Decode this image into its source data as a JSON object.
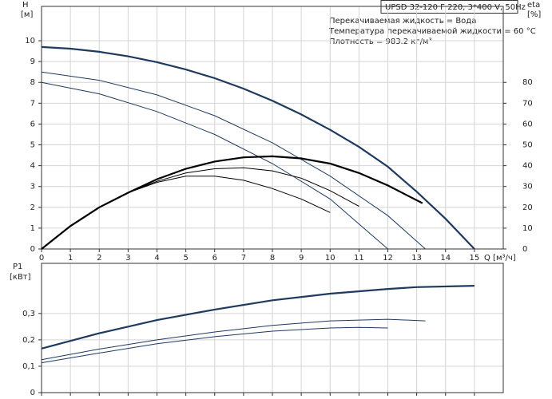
{
  "chart_data": [
    {
      "type": "line",
      "title": "UPSD 32-120 F 220, 3*400 V, 50Hz",
      "annotations": [
        "Перекачиваемая жидкость = Вода",
        "Температура перекачиваемой жидкости = 60 °C",
        "Плотность = 983.2 кг/м³"
      ],
      "x_label": "Q [м³/ч]",
      "y_label": "H",
      "y_unit": "[м]",
      "y2_label": "eta",
      "y2_unit": "[%]",
      "xlim": [
        0,
        16
      ],
      "xticks": [
        0,
        1,
        2,
        3,
        4,
        5,
        6,
        7,
        8,
        9,
        10,
        11,
        12,
        13,
        14,
        15
      ],
      "ylim": [
        0,
        11.65
      ],
      "yticks": [
        0,
        1,
        2,
        3,
        4,
        5,
        6,
        7,
        8,
        9,
        10
      ],
      "y2lim": [
        0,
        116.5
      ],
      "y2ticks": [
        0,
        10,
        20,
        30,
        40,
        50,
        60,
        70,
        80
      ],
      "grid": true,
      "series": [
        {
          "color": "#1f3a5f",
          "x": [
            0,
            1,
            2,
            3,
            4,
            5,
            6,
            7,
            8,
            9,
            10,
            11,
            12,
            13,
            14,
            15
          ],
          "values": [
            9.7,
            9.62,
            9.47,
            9.25,
            8.97,
            8.62,
            8.2,
            7.7,
            7.12,
            6.46,
            5.72,
            4.9,
            3.95,
            2.75,
            1.45,
            0
          ]
        },
        {
          "color": "#1f3a5f",
          "x": [
            0,
            2,
            4,
            6,
            8,
            10,
            12,
            13.3
          ],
          "values": [
            8.5,
            8.1,
            7.4,
            6.4,
            5.1,
            3.5,
            1.6,
            0
          ]
        },
        {
          "color": "#1f3a5f",
          "x": [
            0,
            2,
            4,
            6,
            8,
            10,
            12
          ],
          "values": [
            8.0,
            7.45,
            6.6,
            5.5,
            4.1,
            2.4,
            0
          ]
        },
        {
          "color": "#000000",
          "axis": "y2",
          "x": [
            0,
            1,
            2,
            3,
            4,
            5,
            6,
            7,
            8,
            9,
            10,
            11,
            12,
            13.2
          ],
          "values": [
            0,
            11,
            20,
            27,
            33.5,
            38.5,
            42,
            44,
            44.5,
            43.5,
            41,
            36.5,
            30.5,
            22
          ]
        },
        {
          "color": "#000000",
          "axis": "y2",
          "x": [
            0,
            1,
            2,
            3,
            4,
            5,
            6,
            7,
            8,
            9,
            10,
            11
          ],
          "values": [
            0,
            11,
            20,
            27,
            32.5,
            36.5,
            38.5,
            39,
            37.5,
            34,
            28,
            20.5
          ]
        },
        {
          "color": "#000000",
          "axis": "y2",
          "x": [
            0,
            1,
            2,
            3,
            4,
            5,
            6,
            7,
            8,
            9,
            10
          ],
          "values": [
            0,
            11,
            20,
            27,
            32,
            35,
            35,
            33,
            29,
            24,
            17.5
          ]
        }
      ]
    },
    {
      "type": "line",
      "y_label": "P1",
      "y_unit": "[кВт]",
      "xlim": [
        0,
        16
      ],
      "ylim": [
        0,
        0.49
      ],
      "yticks": [
        0,
        {
          "value": 0.1,
          "label": "0,1"
        },
        {
          "value": 0.2,
          "label": "0,2"
        },
        {
          "value": 0.3,
          "label": "0,3"
        }
      ],
      "grid": true,
      "series": [
        {
          "color": "#1f3a5f",
          "x": [
            0,
            2,
            4,
            6,
            8,
            10,
            12,
            13,
            15
          ],
          "values": [
            0.167,
            0.225,
            0.275,
            0.315,
            0.35,
            0.375,
            0.393,
            0.4,
            0.405
          ]
        },
        {
          "color": "#1f3a5f",
          "x": [
            0,
            2,
            4,
            6,
            8,
            10,
            12,
            13.3
          ],
          "values": [
            0.125,
            0.165,
            0.2,
            0.23,
            0.255,
            0.272,
            0.278,
            0.272
          ]
        },
        {
          "color": "#1f3a5f",
          "x": [
            0,
            2,
            4,
            6,
            8,
            10,
            11,
            12
          ],
          "values": [
            0.113,
            0.15,
            0.185,
            0.212,
            0.233,
            0.245,
            0.247,
            0.245
          ]
        }
      ]
    }
  ]
}
